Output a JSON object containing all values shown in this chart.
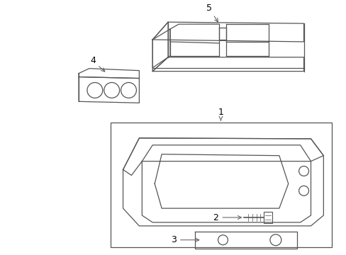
{
  "bg_color": "#ffffff",
  "line_color": "#555555",
  "label_color": "#000000",
  "fig_width": 4.89,
  "fig_height": 3.6,
  "dpi": 100
}
